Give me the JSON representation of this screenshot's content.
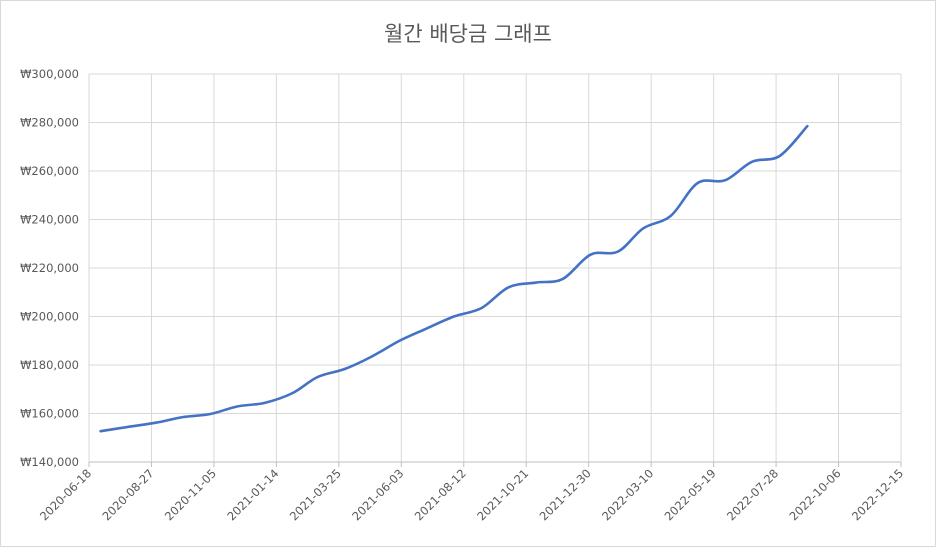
{
  "chart_data": {
    "type": "line",
    "title": "월간 배당금 그래프",
    "xlabel": "",
    "ylabel": "",
    "x_ticks": [
      "2020-06-18",
      "2020-08-27",
      "2020-11-05",
      "2021-01-14",
      "2021-03-25",
      "2021-06-03",
      "2021-08-12",
      "2021-10-21",
      "2021-12-30",
      "2022-03-10",
      "2022-05-19",
      "2022-07-28",
      "2022-10-06",
      "2022-12-15"
    ],
    "xlim": [
      "2020-06-18",
      "2022-12-15"
    ],
    "ylim": [
      140000,
      300000
    ],
    "y_ticks": [
      140000,
      160000,
      180000,
      200000,
      220000,
      240000,
      260000,
      280000,
      300000
    ],
    "y_tick_labels": [
      "₩140,000",
      "₩160,000",
      "₩180,000",
      "₩200,000",
      "₩220,000",
      "₩240,000",
      "₩260,000",
      "₩280,000",
      "₩300,000"
    ],
    "grid": true,
    "legend": "none",
    "series": [
      {
        "color": "#4472c4",
        "x": [
          "2020-07-01",
          "2020-08-01",
          "2020-09-01",
          "2020-10-01",
          "2020-11-01",
          "2020-12-01",
          "2021-01-01",
          "2021-02-01",
          "2021-03-01",
          "2021-04-01",
          "2021-05-01",
          "2021-06-01",
          "2021-07-01",
          "2021-08-01",
          "2021-09-01",
          "2021-10-01",
          "2021-11-01",
          "2021-12-01",
          "2022-01-01",
          "2022-02-01",
          "2022-03-01",
          "2022-04-01",
          "2022-05-01",
          "2022-06-01",
          "2022-07-01",
          "2022-08-01",
          "2022-09-01"
        ],
        "values": [
          152700,
          154500,
          156200,
          158500,
          159800,
          162900,
          164400,
          168400,
          175000,
          178400,
          183500,
          190000,
          195000,
          200000,
          203500,
          212000,
          214000,
          215500,
          225500,
          226800,
          236300,
          241500,
          255000,
          256200,
          263800,
          266200,
          278500
        ]
      }
    ]
  }
}
